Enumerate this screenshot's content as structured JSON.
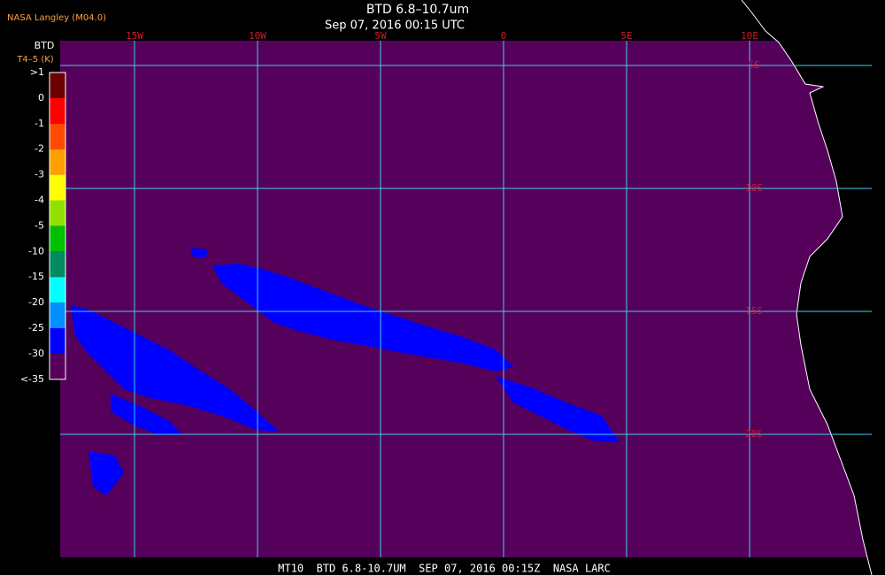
{
  "source": "NASA Langley (M04.0)",
  "title": "BTD 6.8–10.7um",
  "subtitle": "Sep 07, 2016 00:15 UTC",
  "colorbar": {
    "title": "BTD",
    "subtitle": "T4–5 (K)",
    "labels": [
      ">1",
      "0",
      "-1",
      "-2",
      "-3",
      "-4",
      "-5",
      "-10",
      "-15",
      "-20",
      "-25",
      "-30",
      "<-35"
    ],
    "colors": [
      "#6e0000",
      "#ff0000",
      "#ff4a00",
      "#ffa000",
      "#ffff00",
      "#90e000",
      "#00c000",
      "#008a60",
      "#00ffff",
      "#0090ff",
      "#0000ff",
      "#55005a"
    ]
  },
  "longitudes": [
    {
      "value": -15,
      "label": "15W"
    },
    {
      "value": -10,
      "label": "10W"
    },
    {
      "value": -5,
      "label": "5W"
    },
    {
      "value": 0,
      "label": "0"
    },
    {
      "value": 5,
      "label": "5E"
    },
    {
      "value": 10,
      "label": "10E"
    }
  ],
  "latitudes": [
    {
      "value": -5,
      "label": "5S"
    },
    {
      "value": -10,
      "label": "10S"
    },
    {
      "value": -15,
      "label": "15S"
    },
    {
      "value": -20,
      "label": "20S"
    }
  ],
  "footer": "MT10  BTD 6.8-10.7UM  SEP 07, 2016 00:15Z  NASA LARC"
}
